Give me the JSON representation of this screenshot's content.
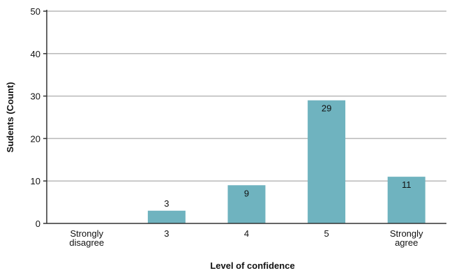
{
  "chart_data": {
    "type": "bar",
    "title": "",
    "xlabel": "Level of confidence",
    "ylabel": "Sudents (Count)",
    "ylim": [
      0,
      50
    ],
    "yticks": [
      0,
      10,
      20,
      30,
      40,
      50
    ],
    "grid": true,
    "categories": [
      [
        "Strongly",
        "disagree"
      ],
      [
        "3"
      ],
      [
        "4"
      ],
      [
        "5"
      ],
      [
        "Strongly",
        "agree"
      ]
    ],
    "values": [
      0,
      3,
      9,
      29,
      11
    ],
    "data_labels": [
      "",
      "3",
      "9",
      "29",
      "11"
    ],
    "bar_color": "#6fb3bf",
    "grid_color": "#b9b9b9",
    "axis_color": "#333333"
  }
}
